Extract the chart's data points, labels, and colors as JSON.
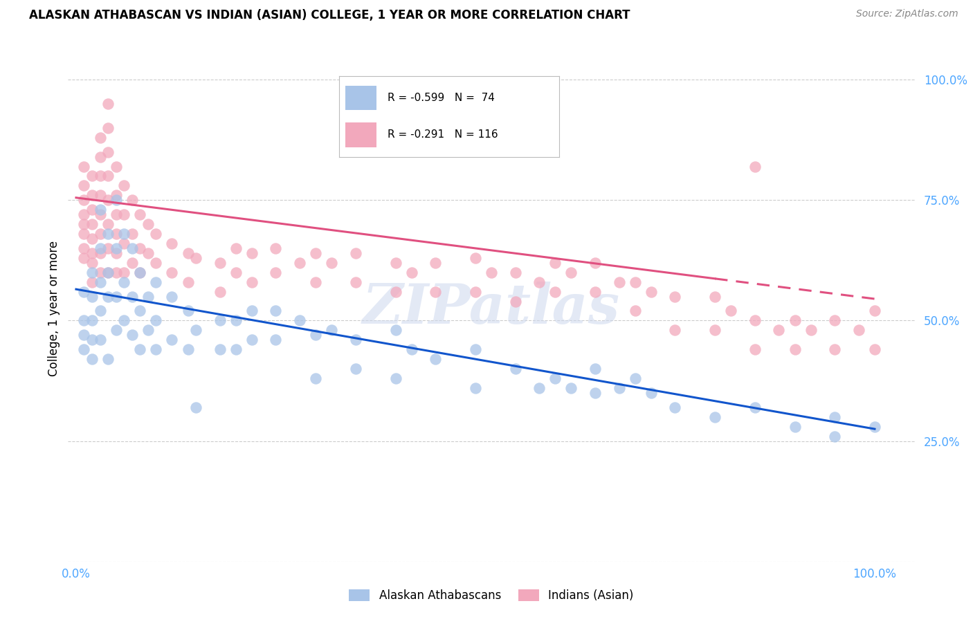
{
  "title": "ALASKAN ATHABASCAN VS INDIAN (ASIAN) COLLEGE, 1 YEAR OR MORE CORRELATION CHART",
  "source": "Source: ZipAtlas.com",
  "ylabel": "College, 1 year or more",
  "watermark": "ZIPatlas",
  "legend": {
    "blue_label": "Alaskan Athabascans",
    "pink_label": "Indians (Asian)",
    "blue_R": "R = -0.599",
    "blue_N": "N =  74",
    "pink_R": "R = -0.291",
    "pink_N": "N = 116"
  },
  "blue_color": "#a8c4e8",
  "pink_color": "#f2a8bc",
  "blue_line_color": "#1155cc",
  "pink_line_color": "#e05080",
  "blue_scatter": [
    [
      0.01,
      0.56
    ],
    [
      0.01,
      0.5
    ],
    [
      0.01,
      0.47
    ],
    [
      0.01,
      0.44
    ],
    [
      0.02,
      0.6
    ],
    [
      0.02,
      0.55
    ],
    [
      0.02,
      0.5
    ],
    [
      0.02,
      0.46
    ],
    [
      0.02,
      0.42
    ],
    [
      0.03,
      0.73
    ],
    [
      0.03,
      0.65
    ],
    [
      0.03,
      0.58
    ],
    [
      0.03,
      0.52
    ],
    [
      0.03,
      0.46
    ],
    [
      0.04,
      0.68
    ],
    [
      0.04,
      0.6
    ],
    [
      0.04,
      0.55
    ],
    [
      0.04,
      0.42
    ],
    [
      0.05,
      0.75
    ],
    [
      0.05,
      0.65
    ],
    [
      0.05,
      0.55
    ],
    [
      0.05,
      0.48
    ],
    [
      0.06,
      0.68
    ],
    [
      0.06,
      0.58
    ],
    [
      0.06,
      0.5
    ],
    [
      0.07,
      0.65
    ],
    [
      0.07,
      0.55
    ],
    [
      0.07,
      0.47
    ],
    [
      0.08,
      0.6
    ],
    [
      0.08,
      0.52
    ],
    [
      0.08,
      0.44
    ],
    [
      0.09,
      0.55
    ],
    [
      0.09,
      0.48
    ],
    [
      0.1,
      0.58
    ],
    [
      0.1,
      0.5
    ],
    [
      0.1,
      0.44
    ],
    [
      0.12,
      0.55
    ],
    [
      0.12,
      0.46
    ],
    [
      0.14,
      0.52
    ],
    [
      0.14,
      0.44
    ],
    [
      0.15,
      0.48
    ],
    [
      0.15,
      0.32
    ],
    [
      0.18,
      0.5
    ],
    [
      0.18,
      0.44
    ],
    [
      0.2,
      0.5
    ],
    [
      0.2,
      0.44
    ],
    [
      0.22,
      0.52
    ],
    [
      0.22,
      0.46
    ],
    [
      0.25,
      0.52
    ],
    [
      0.25,
      0.46
    ],
    [
      0.28,
      0.5
    ],
    [
      0.3,
      0.47
    ],
    [
      0.3,
      0.38
    ],
    [
      0.32,
      0.48
    ],
    [
      0.35,
      0.46
    ],
    [
      0.35,
      0.4
    ],
    [
      0.4,
      0.48
    ],
    [
      0.4,
      0.38
    ],
    [
      0.42,
      0.44
    ],
    [
      0.45,
      0.42
    ],
    [
      0.5,
      0.44
    ],
    [
      0.5,
      0.36
    ],
    [
      0.55,
      0.4
    ],
    [
      0.58,
      0.36
    ],
    [
      0.6,
      0.38
    ],
    [
      0.62,
      0.36
    ],
    [
      0.65,
      0.4
    ],
    [
      0.65,
      0.35
    ],
    [
      0.68,
      0.36
    ],
    [
      0.7,
      0.38
    ],
    [
      0.72,
      0.35
    ],
    [
      0.75,
      0.32
    ],
    [
      0.8,
      0.3
    ],
    [
      0.85,
      0.32
    ],
    [
      0.9,
      0.28
    ],
    [
      0.95,
      0.3
    ],
    [
      0.95,
      0.26
    ],
    [
      1.0,
      0.28
    ]
  ],
  "pink_scatter": [
    [
      0.01,
      0.82
    ],
    [
      0.01,
      0.78
    ],
    [
      0.01,
      0.75
    ],
    [
      0.01,
      0.72
    ],
    [
      0.01,
      0.7
    ],
    [
      0.01,
      0.68
    ],
    [
      0.01,
      0.65
    ],
    [
      0.01,
      0.63
    ],
    [
      0.02,
      0.8
    ],
    [
      0.02,
      0.76
    ],
    [
      0.02,
      0.73
    ],
    [
      0.02,
      0.7
    ],
    [
      0.02,
      0.67
    ],
    [
      0.02,
      0.64
    ],
    [
      0.02,
      0.62
    ],
    [
      0.02,
      0.58
    ],
    [
      0.03,
      0.88
    ],
    [
      0.03,
      0.84
    ],
    [
      0.03,
      0.8
    ],
    [
      0.03,
      0.76
    ],
    [
      0.03,
      0.72
    ],
    [
      0.03,
      0.68
    ],
    [
      0.03,
      0.64
    ],
    [
      0.03,
      0.6
    ],
    [
      0.04,
      0.95
    ],
    [
      0.04,
      0.9
    ],
    [
      0.04,
      0.85
    ],
    [
      0.04,
      0.8
    ],
    [
      0.04,
      0.75
    ],
    [
      0.04,
      0.7
    ],
    [
      0.04,
      0.65
    ],
    [
      0.04,
      0.6
    ],
    [
      0.05,
      0.82
    ],
    [
      0.05,
      0.76
    ],
    [
      0.05,
      0.72
    ],
    [
      0.05,
      0.68
    ],
    [
      0.05,
      0.64
    ],
    [
      0.05,
      0.6
    ],
    [
      0.06,
      0.78
    ],
    [
      0.06,
      0.72
    ],
    [
      0.06,
      0.66
    ],
    [
      0.06,
      0.6
    ],
    [
      0.07,
      0.75
    ],
    [
      0.07,
      0.68
    ],
    [
      0.07,
      0.62
    ],
    [
      0.08,
      0.72
    ],
    [
      0.08,
      0.65
    ],
    [
      0.08,
      0.6
    ],
    [
      0.09,
      0.7
    ],
    [
      0.09,
      0.64
    ],
    [
      0.1,
      0.68
    ],
    [
      0.1,
      0.62
    ],
    [
      0.12,
      0.66
    ],
    [
      0.12,
      0.6
    ],
    [
      0.14,
      0.64
    ],
    [
      0.14,
      0.58
    ],
    [
      0.15,
      0.63
    ],
    [
      0.18,
      0.62
    ],
    [
      0.18,
      0.56
    ],
    [
      0.2,
      0.65
    ],
    [
      0.2,
      0.6
    ],
    [
      0.22,
      0.64
    ],
    [
      0.22,
      0.58
    ],
    [
      0.25,
      0.65
    ],
    [
      0.25,
      0.6
    ],
    [
      0.28,
      0.62
    ],
    [
      0.3,
      0.64
    ],
    [
      0.3,
      0.58
    ],
    [
      0.32,
      0.62
    ],
    [
      0.35,
      0.64
    ],
    [
      0.35,
      0.58
    ],
    [
      0.4,
      0.62
    ],
    [
      0.4,
      0.56
    ],
    [
      0.42,
      0.6
    ],
    [
      0.45,
      0.62
    ],
    [
      0.45,
      0.56
    ],
    [
      0.5,
      0.63
    ],
    [
      0.5,
      0.56
    ],
    [
      0.52,
      0.6
    ],
    [
      0.55,
      0.6
    ],
    [
      0.55,
      0.54
    ],
    [
      0.58,
      0.58
    ],
    [
      0.6,
      0.62
    ],
    [
      0.6,
      0.56
    ],
    [
      0.62,
      0.6
    ],
    [
      0.65,
      0.62
    ],
    [
      0.65,
      0.56
    ],
    [
      0.68,
      0.58
    ],
    [
      0.7,
      0.58
    ],
    [
      0.7,
      0.52
    ],
    [
      0.72,
      0.56
    ],
    [
      0.75,
      0.55
    ],
    [
      0.75,
      0.48
    ],
    [
      0.8,
      0.55
    ],
    [
      0.8,
      0.48
    ],
    [
      0.82,
      0.52
    ],
    [
      0.85,
      0.82
    ],
    [
      0.85,
      0.5
    ],
    [
      0.85,
      0.44
    ],
    [
      0.88,
      0.48
    ],
    [
      0.9,
      0.5
    ],
    [
      0.9,
      0.44
    ],
    [
      0.92,
      0.48
    ],
    [
      0.95,
      0.5
    ],
    [
      0.95,
      0.44
    ],
    [
      0.98,
      0.48
    ],
    [
      1.0,
      0.52
    ],
    [
      1.0,
      0.44
    ]
  ],
  "blue_line": {
    "x0": 0.0,
    "y0": 0.565,
    "x1": 1.0,
    "y1": 0.275
  },
  "pink_line": {
    "x0": 0.0,
    "y0": 0.755,
    "x1": 1.0,
    "y1": 0.545
  },
  "pink_line_dash_start": 0.8,
  "ylim": [
    0.0,
    1.05
  ],
  "xlim": [
    -0.01,
    1.05
  ],
  "yticks": [
    0.0,
    0.25,
    0.5,
    0.75,
    1.0
  ],
  "ytick_labels": [
    "",
    "25.0%",
    "50.0%",
    "75.0%",
    "100.0%"
  ],
  "xticks": [
    0.0,
    1.0
  ],
  "xtick_labels": [
    "0.0%",
    "100.0%"
  ],
  "background_color": "#ffffff",
  "grid_color": "#cccccc",
  "tick_color": "#4da6ff"
}
